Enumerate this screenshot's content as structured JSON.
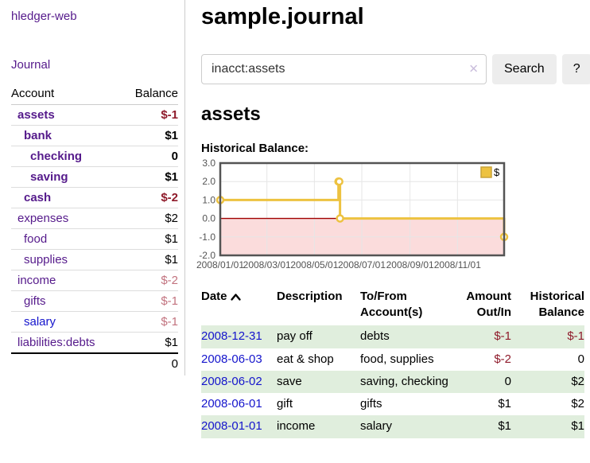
{
  "app": {
    "title": "hledger-web"
  },
  "nav": {
    "journal": "Journal"
  },
  "sidebar": {
    "header": {
      "account": "Account",
      "balance": "Balance"
    },
    "accounts": [
      {
        "name": "assets",
        "indent": 1,
        "bold": true,
        "balance": "$-1",
        "balance_style": "neg"
      },
      {
        "name": "bank",
        "indent": 2,
        "bold": true,
        "balance": "$1",
        "balance_style": "pos"
      },
      {
        "name": "checking",
        "indent": 3,
        "bold": true,
        "balance": "0",
        "balance_style": "pos"
      },
      {
        "name": "saving",
        "indent": 3,
        "bold": true,
        "balance": "$1",
        "balance_style": "pos"
      },
      {
        "name": "cash",
        "indent": 2,
        "bold": true,
        "balance": "$-2",
        "balance_style": "neg"
      },
      {
        "name": "expenses",
        "indent": 1,
        "bold": false,
        "balance": "$2",
        "balance_style": "pos"
      },
      {
        "name": "food",
        "indent": 2,
        "bold": false,
        "balance": "$1",
        "balance_style": "pos"
      },
      {
        "name": "supplies",
        "indent": 2,
        "bold": false,
        "balance": "$1",
        "balance_style": "pos"
      },
      {
        "name": "income",
        "indent": 1,
        "bold": false,
        "balance": "$-2",
        "balance_style": "negm"
      },
      {
        "name": "gifts",
        "indent": 2,
        "bold": false,
        "balance": "$-1",
        "balance_style": "negm"
      },
      {
        "name": "salary",
        "indent": 2,
        "bold": false,
        "link_color": "blue",
        "balance": "$-1",
        "balance_style": "negm"
      },
      {
        "name": "liabilities:debts",
        "indent": 1,
        "bold": false,
        "balance": "$1",
        "balance_style": "pos"
      }
    ],
    "total": "0"
  },
  "main": {
    "title": "sample.journal",
    "search": {
      "value": "inacct:assets",
      "clear_icon": "✕",
      "search_label": "Search",
      "help_label": "?"
    },
    "account_heading": "assets",
    "chart_label": "Historical Balance:"
  },
  "chart_data": {
    "type": "line",
    "title": "Historical Balance",
    "step": true,
    "ylim": [
      -2,
      3
    ],
    "y_ticks": [
      3,
      2,
      1,
      0,
      -1,
      -2
    ],
    "xlim_days": [
      0,
      365
    ],
    "x_ticks": [
      {
        "label": "2008/01/01",
        "day": 0
      },
      {
        "label": "2008/03/01",
        "day": 60
      },
      {
        "label": "2008/05/01",
        "day": 121
      },
      {
        "label": "2008/07/01",
        "day": 182
      },
      {
        "label": "2008/09/01",
        "day": 244
      },
      {
        "label": "2008/11/01",
        "day": 305
      }
    ],
    "series": [
      {
        "name": "$",
        "color": "#edc240",
        "points": [
          {
            "date": "2008-01-01",
            "day": 0,
            "value": 1
          },
          {
            "date": "2008-06-01",
            "day": 152,
            "value": 2
          },
          {
            "date": "2008-06-02",
            "day": 153,
            "value": 2
          },
          {
            "date": "2008-06-03",
            "day": 154,
            "value": 0
          },
          {
            "date": "2008-12-31",
            "day": 365,
            "value": -1
          }
        ]
      }
    ],
    "legend": {
      "label": "$",
      "position": "top-right"
    },
    "grid": true,
    "negative_region": true
  },
  "register": {
    "columns": [
      {
        "line1": "Date",
        "line2": "",
        "sort": "ascending"
      },
      {
        "line1": "Description",
        "line2": ""
      },
      {
        "line1": "To/From",
        "line2": "Account(s)"
      },
      {
        "line1": "Amount",
        "line2": "Out/In"
      },
      {
        "line1": "Historical",
        "line2": "Balance"
      }
    ],
    "rows": [
      {
        "date": "2008-12-31",
        "description": "pay off",
        "accounts": "debts",
        "amount": "$-1",
        "amount_neg": true,
        "balance": "$-1",
        "balance_neg": true
      },
      {
        "date": "2008-06-03",
        "description": "eat & shop",
        "accounts": "food, supplies",
        "amount": "$-2",
        "amount_neg": true,
        "balance": "0",
        "balance_neg": false
      },
      {
        "date": "2008-06-02",
        "description": "save",
        "accounts": "saving, checking",
        "amount": "0",
        "amount_neg": false,
        "balance": "$2",
        "balance_neg": false
      },
      {
        "date": "2008-06-01",
        "description": "gift",
        "accounts": "gifts",
        "amount": "$1",
        "amount_neg": false,
        "balance": "$2",
        "balance_neg": false
      },
      {
        "date": "2008-01-01",
        "description": "income",
        "accounts": "salary",
        "amount": "$1",
        "amount_neg": false,
        "balance": "$1",
        "balance_neg": false
      }
    ]
  },
  "colors": {
    "link_purple": "#551a8b",
    "link_blue": "#1414cc",
    "negative": "#8f1b2b",
    "negative_muted": "#c2737f",
    "row_stripe": "#e0eedd",
    "row_line": "#dddddd",
    "divider": "#cccccc",
    "series_gold": "#edc240",
    "legend_border": "#c9a338",
    "negative_region": "#fbdcdc",
    "zero_line": "#a00000",
    "grid_border": "#545454",
    "grid_line": "#e6e6e6",
    "axis_text": "#545454",
    "button_bg": "#ededed",
    "input_border": "#cccccc",
    "clear_icon": "#cbbfdd"
  }
}
